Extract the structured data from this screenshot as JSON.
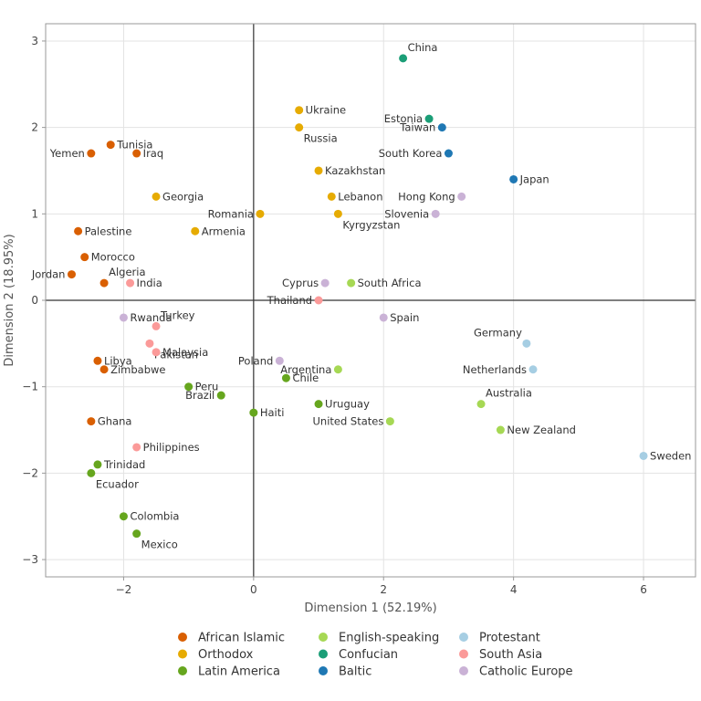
{
  "chart_data": {
    "type": "scatter",
    "xlabel": "Dimension 1 (52.19%)",
    "ylabel": "Dimension 2 (18.95%)",
    "xlim": [
      -3.2,
      6.8
    ],
    "ylim": [
      -3.2,
      3.2
    ],
    "xticks": [
      -2,
      0,
      2,
      4,
      6
    ],
    "yticks": [
      -3,
      -2,
      -1,
      0,
      1,
      2,
      3
    ],
    "xtick_labels": [
      "−2",
      "0",
      "2",
      "4",
      "6"
    ],
    "ytick_labels": [
      "−3",
      "−2",
      "−1",
      "0",
      "1",
      "2",
      "3"
    ],
    "grid": true,
    "legend_position": "bottom",
    "groups": [
      {
        "name": "African Islamic",
        "color": "#d95f02"
      },
      {
        "name": "Orthodox",
        "color": "#e6ab02"
      },
      {
        "name": "Latin America",
        "color": "#66a61e"
      },
      {
        "name": "English-speaking",
        "color": "#a6d854"
      },
      {
        "name": "Confucian",
        "color": "#1b9e77"
      },
      {
        "name": "Baltic",
        "color": "#1f78b4"
      },
      {
        "name": "Protestant",
        "color": "#a6cee3"
      },
      {
        "name": "South Asia",
        "color": "#fb9a99"
      },
      {
        "name": "Catholic Europe",
        "color": "#cab2d6"
      }
    ],
    "points": [
      {
        "label": "China",
        "group": "Confucian",
        "x": 2.3,
        "y": 2.8,
        "pos": "right-up"
      },
      {
        "label": "Ukraine",
        "group": "Orthodox",
        "x": 0.7,
        "y": 2.2,
        "pos": "right"
      },
      {
        "label": "Russia",
        "group": "Orthodox",
        "x": 0.7,
        "y": 2.0,
        "pos": "right-down"
      },
      {
        "label": "Estonia",
        "group": "Confucian",
        "x": 2.7,
        "y": 2.1,
        "pos": "left"
      },
      {
        "label": "Taiwan",
        "group": "Baltic",
        "x": 2.9,
        "y": 2.0,
        "pos": "left"
      },
      {
        "label": "South Korea",
        "group": "Baltic",
        "x": 3.0,
        "y": 1.7,
        "pos": "left"
      },
      {
        "label": "Japan",
        "group": "Baltic",
        "x": 4.0,
        "y": 1.4,
        "pos": "right"
      },
      {
        "label": "Tunisia",
        "group": "African Islamic",
        "x": -2.2,
        "y": 1.8,
        "pos": "right"
      },
      {
        "label": "Iraq",
        "group": "African Islamic",
        "x": -1.8,
        "y": 1.7,
        "pos": "right"
      },
      {
        "label": "Yemen",
        "group": "African Islamic",
        "x": -2.5,
        "y": 1.7,
        "pos": "left"
      },
      {
        "label": "Kazakhstan",
        "group": "Orthodox",
        "x": 1.0,
        "y": 1.5,
        "pos": "right"
      },
      {
        "label": "Georgia",
        "group": "Orthodox",
        "x": -1.5,
        "y": 1.2,
        "pos": "right"
      },
      {
        "label": "Lebanon",
        "group": "Orthodox",
        "x": 1.2,
        "y": 1.2,
        "pos": "right"
      },
      {
        "label": "Hong Kong",
        "group": "Catholic Europe",
        "x": 3.2,
        "y": 1.2,
        "pos": "left"
      },
      {
        "label": "Romania",
        "group": "Orthodox",
        "x": 0.1,
        "y": 1.0,
        "pos": "left"
      },
      {
        "label": "Kyrgyzstan",
        "group": "Orthodox",
        "x": 1.3,
        "y": 1.0,
        "pos": "right-down"
      },
      {
        "label": "Slovenia",
        "group": "Catholic Europe",
        "x": 2.8,
        "y": 1.0,
        "pos": "left"
      },
      {
        "label": "Palestine",
        "group": "African Islamic",
        "x": -2.7,
        "y": 0.8,
        "pos": "right"
      },
      {
        "label": "Armenia",
        "group": "Orthodox",
        "x": -0.9,
        "y": 0.8,
        "pos": "right"
      },
      {
        "label": "Morocco",
        "group": "African Islamic",
        "x": -2.6,
        "y": 0.5,
        "pos": "right"
      },
      {
        "label": "Jordan",
        "group": "African Islamic",
        "x": -2.8,
        "y": 0.3,
        "pos": "left"
      },
      {
        "label": "Algeria",
        "group": "African Islamic",
        "x": -2.3,
        "y": 0.2,
        "pos": "right-up"
      },
      {
        "label": "India",
        "group": "South Asia",
        "x": -1.9,
        "y": 0.2,
        "pos": "right"
      },
      {
        "label": "Cyprus",
        "group": "Catholic Europe",
        "x": 1.1,
        "y": 0.2,
        "pos": "left"
      },
      {
        "label": "South Africa",
        "group": "English-speaking",
        "x": 1.5,
        "y": 0.2,
        "pos": "right"
      },
      {
        "label": "Thailand",
        "group": "South Asia",
        "x": 1.0,
        "y": 0.0,
        "pos": "left"
      },
      {
        "label": "Rwanda",
        "group": "Catholic Europe",
        "x": -2.0,
        "y": -0.2,
        "pos": "right"
      },
      {
        "label": "Turkey",
        "group": "South Asia",
        "x": -1.5,
        "y": -0.3,
        "pos": "right-up"
      },
      {
        "label": "Spain",
        "group": "Catholic Europe",
        "x": 2.0,
        "y": -0.2,
        "pos": "right"
      },
      {
        "label": "Pakistan",
        "group": "South Asia",
        "x": -1.6,
        "y": -0.5,
        "pos": "right-down"
      },
      {
        "label": "Malaysia",
        "group": "South Asia",
        "x": -1.5,
        "y": -0.6,
        "pos": "right"
      },
      {
        "label": "Germany",
        "group": "Protestant",
        "x": 4.2,
        "y": -0.5,
        "pos": "left-up"
      },
      {
        "label": "Libya",
        "group": "African Islamic",
        "x": -2.4,
        "y": -0.7,
        "pos": "right"
      },
      {
        "label": "Zimbabwe",
        "group": "African Islamic",
        "x": -2.3,
        "y": -0.8,
        "pos": "right"
      },
      {
        "label": "Poland",
        "group": "Catholic Europe",
        "x": 0.4,
        "y": -0.7,
        "pos": "left"
      },
      {
        "label": "Argentina",
        "group": "English-speaking",
        "x": 1.3,
        "y": -0.8,
        "pos": "left"
      },
      {
        "label": "Netherlands",
        "group": "Protestant",
        "x": 4.3,
        "y": -0.8,
        "pos": "left"
      },
      {
        "label": "Chile",
        "group": "Latin America",
        "x": 0.5,
        "y": -0.9,
        "pos": "right"
      },
      {
        "label": "Peru",
        "group": "Latin America",
        "x": -1.0,
        "y": -1.0,
        "pos": "right"
      },
      {
        "label": "Brazil",
        "group": "Latin America",
        "x": -0.5,
        "y": -1.1,
        "pos": "left"
      },
      {
        "label": "Uruguay",
        "group": "Latin America",
        "x": 1.0,
        "y": -1.2,
        "pos": "right"
      },
      {
        "label": "Australia",
        "group": "English-speaking",
        "x": 3.5,
        "y": -1.2,
        "pos": "right-up"
      },
      {
        "label": "Haiti",
        "group": "Latin America",
        "x": 0.0,
        "y": -1.3,
        "pos": "right"
      },
      {
        "label": "Ghana",
        "group": "African Islamic",
        "x": -2.5,
        "y": -1.4,
        "pos": "right"
      },
      {
        "label": "United States",
        "group": "English-speaking",
        "x": 2.1,
        "y": -1.4,
        "pos": "left"
      },
      {
        "label": "New Zealand",
        "group": "English-speaking",
        "x": 3.8,
        "y": -1.5,
        "pos": "right"
      },
      {
        "label": "Philippines",
        "group": "South Asia",
        "x": -1.8,
        "y": -1.7,
        "pos": "right"
      },
      {
        "label": "Sweden",
        "group": "Protestant",
        "x": 6.0,
        "y": -1.8,
        "pos": "right"
      },
      {
        "label": "Trinidad",
        "group": "Latin America",
        "x": -2.4,
        "y": -1.9,
        "pos": "right"
      },
      {
        "label": "Ecuador",
        "group": "Latin America",
        "x": -2.5,
        "y": -2.0,
        "pos": "right-down"
      },
      {
        "label": "Colombia",
        "group": "Latin America",
        "x": -2.0,
        "y": -2.5,
        "pos": "right"
      },
      {
        "label": "Mexico",
        "group": "Latin America",
        "x": -1.8,
        "y": -2.7,
        "pos": "right-down"
      }
    ]
  }
}
